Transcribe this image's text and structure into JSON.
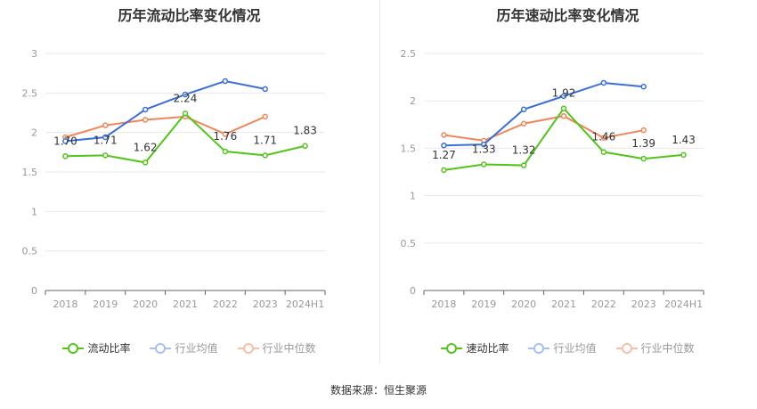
{
  "source_text": "数据来源：恒生聚源",
  "colors": {
    "company": "#52c41a",
    "industry_avg": "#3a6fd8",
    "industry_median": "#f0865a",
    "axis": "#999999",
    "grid": "#e8e8e8"
  },
  "chart_data": [
    {
      "type": "line",
      "title": "历年流动比率变化情况",
      "categories": [
        "2018",
        "2019",
        "2020",
        "2021",
        "2022",
        "2023",
        "2024H1"
      ],
      "yticks": [
        "0",
        "0.5",
        "1",
        "1.5",
        "2",
        "2.5",
        "3"
      ],
      "ylim": [
        0,
        3
      ],
      "grid": true,
      "legend_position": "bottom",
      "series": [
        {
          "name": "流动比率",
          "key": "company",
          "labels": true,
          "values": [
            1.7,
            1.71,
            1.62,
            2.24,
            1.76,
            1.71,
            1.83
          ],
          "value_labels": [
            "1.70",
            "1.71",
            "1.62",
            "2.24",
            "1.76",
            "1.71",
            "1.83"
          ]
        },
        {
          "name": "行业均值",
          "key": "industry_avg",
          "values": [
            1.89,
            1.94,
            2.29,
            2.48,
            2.65,
            2.55,
            null
          ]
        },
        {
          "name": "行业中位数",
          "key": "industry_median",
          "values": [
            1.94,
            2.09,
            2.16,
            2.2,
            1.98,
            2.2,
            null
          ]
        }
      ]
    },
    {
      "type": "line",
      "title": "历年速动比率变化情况",
      "categories": [
        "2018",
        "2019",
        "2020",
        "2021",
        "2022",
        "2023",
        "2024H1"
      ],
      "yticks": [
        "0",
        "0.5",
        "1",
        "1.5",
        "2",
        "2.5"
      ],
      "ylim": [
        0,
        2.5
      ],
      "grid": true,
      "legend_position": "bottom",
      "series": [
        {
          "name": "速动比率",
          "key": "company",
          "labels": true,
          "values": [
            1.27,
            1.33,
            1.32,
            1.92,
            1.46,
            1.39,
            1.43
          ],
          "value_labels": [
            "1.27",
            "1.33",
            "1.32",
            "1.92",
            "1.46",
            "1.39",
            "1.43"
          ]
        },
        {
          "name": "行业均值",
          "key": "industry_avg",
          "values": [
            1.53,
            1.54,
            1.91,
            2.05,
            2.19,
            2.15,
            null
          ]
        },
        {
          "name": "行业中位数",
          "key": "industry_median",
          "values": [
            1.64,
            1.58,
            1.76,
            1.84,
            1.61,
            1.69,
            null
          ]
        }
      ]
    }
  ]
}
